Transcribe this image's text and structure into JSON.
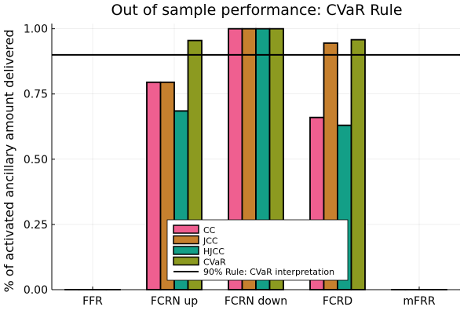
{
  "chart_data": {
    "type": "bar",
    "title": "Out of sample performance: CVaR Rule",
    "xlabel": "",
    "ylabel": "% of activated ancillary amount delivered",
    "categories": [
      "FFR",
      "FCRN up",
      "FCRN down",
      "FCRD",
      "mFRR"
    ],
    "series": [
      {
        "name": "CC",
        "color": "#ef5f90",
        "values": [
          0.0,
          0.795,
          1.0,
          0.66,
          0.0
        ]
      },
      {
        "name": "JCC",
        "color": "#c6802e",
        "values": [
          0.0,
          0.795,
          1.0,
          0.945,
          0.0
        ]
      },
      {
        "name": "HJCC",
        "color": "#139f87",
        "values": [
          0.0,
          0.685,
          1.0,
          0.63,
          0.0
        ]
      },
      {
        "name": "CVaR",
        "color": "#8c9a20",
        "values": [
          0.0,
          0.955,
          1.0,
          0.958,
          0.0
        ]
      }
    ],
    "reference_line": {
      "name": "90% Rule: CVaR interpretation",
      "y": 0.9,
      "color": "#000000"
    },
    "ylim": [
      0,
      1.02
    ],
    "yticks": [
      0.0,
      0.25,
      0.5,
      0.75,
      1.0
    ],
    "ytick_labels": [
      "0.00",
      "0.25",
      "0.50",
      "0.75",
      "1.00"
    ],
    "grid": true,
    "legend_position": "bottom-center"
  }
}
